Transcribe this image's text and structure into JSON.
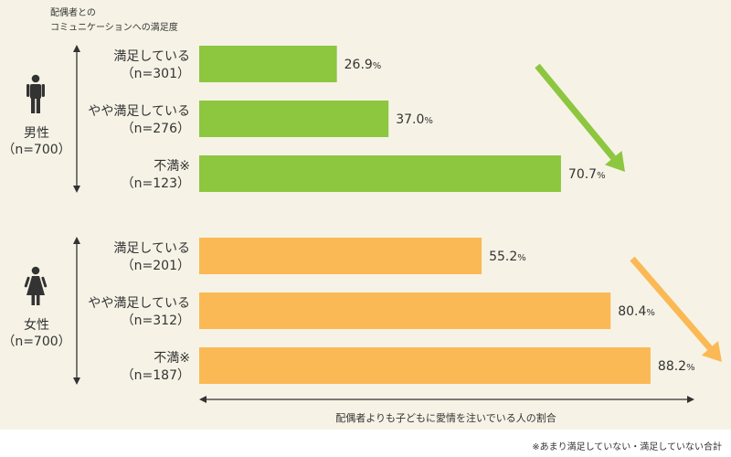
{
  "chart_data": {
    "type": "bar",
    "orientation": "horizontal",
    "title_lines": [
      "配偶者との",
      "コミュニケーションへの満足度"
    ],
    "xlabel": "配偶者よりも子どもに愛情を注いでいる人の割合",
    "unit": "%",
    "xlim": [
      0,
      100
    ],
    "groups": [
      {
        "name": "男性",
        "n_label": "（n=700）",
        "color": "#8dc63f",
        "icon": "male-icon",
        "categories": [
          {
            "label": "満足している",
            "n_label": "（n=301）",
            "value": 26.9,
            "value_text": "26.9"
          },
          {
            "label": "やや満足している",
            "n_label": "（n=276）",
            "value": 37.0,
            "value_text": "37.0"
          },
          {
            "label": "不満※",
            "n_label": "（n=123）",
            "value": 70.7,
            "value_text": "70.7"
          }
        ]
      },
      {
        "name": "女性",
        "n_label": "（n=700）",
        "color": "#fbb955",
        "icon": "female-icon",
        "categories": [
          {
            "label": "満足している",
            "n_label": "（n=201）",
            "value": 55.2,
            "value_text": "55.2"
          },
          {
            "label": "やや満足している",
            "n_label": "（n=312）",
            "value": 80.4,
            "value_text": "80.4"
          },
          {
            "label": "不満※",
            "n_label": "（n=187）",
            "value": 88.2,
            "value_text": "88.2"
          }
        ]
      }
    ],
    "icons": [
      "male-icon",
      "female-icon",
      "trend-arrow-icon",
      "double-arrow-icon"
    ]
  },
  "footnote": "※あまり満足していない・満足していない合計"
}
